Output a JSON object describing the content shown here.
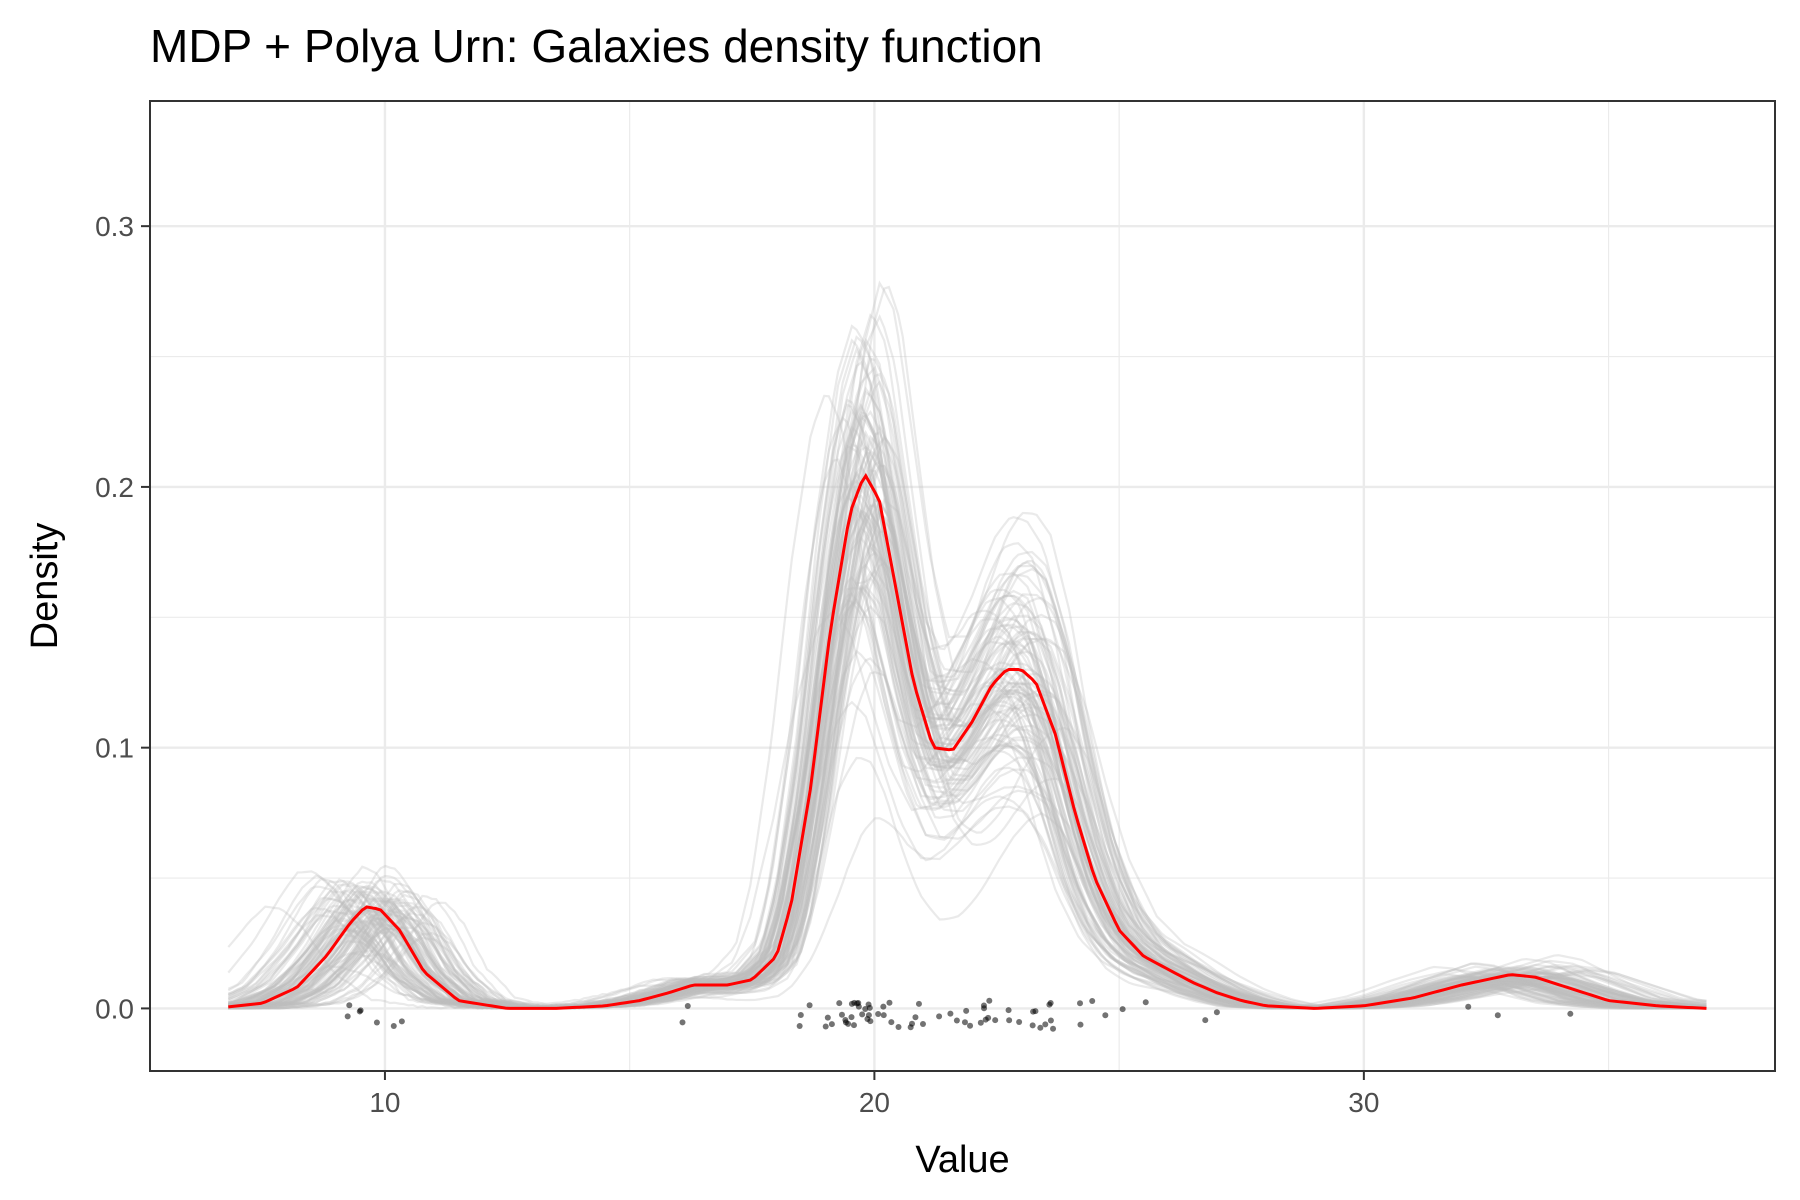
{
  "chart_data": {
    "type": "line",
    "title": "MDP + Polya Urn: Galaxies density function",
    "xlabel": "Value",
    "ylabel": "Density",
    "xlim": [
      5.2,
      38.4
    ],
    "ylim": [
      -0.024,
      0.348
    ],
    "x_ticks": [
      10,
      20,
      30
    ],
    "x_tick_labels": [
      "10",
      "20",
      "30"
    ],
    "y_ticks": [
      0.0,
      0.1,
      0.2,
      0.3
    ],
    "y_tick_labels": [
      "0.0",
      "0.1",
      "0.2",
      "0.3"
    ],
    "grid": true,
    "legend": "none",
    "colors": {
      "posterior_mean": "#ff0000",
      "posterior_draws": "#bdbdbd",
      "observations": "#000000",
      "panel_border": "#333333",
      "grid": "#ebebeb"
    },
    "posterior_mean": {
      "x": [
        5.2,
        6.5,
        7.5,
        8.2,
        8.8,
        9.3,
        9.6,
        9.9,
        10.3,
        10.8,
        11.5,
        12.5,
        13.5,
        14.5,
        15.2,
        15.8,
        16.3,
        17.0,
        17.5,
        18.0,
        18.3,
        18.7,
        19.1,
        19.5,
        19.8,
        20.1,
        20.4,
        20.8,
        21.2,
        21.6,
        22.0,
        22.4,
        22.7,
        23.0,
        23.3,
        23.7,
        24.1,
        24.5,
        25.0,
        25.5,
        26.0,
        26.5,
        27.0,
        27.5,
        28.0,
        29.0,
        30.0,
        31.0,
        32.0,
        32.5,
        33.0,
        33.5,
        34.0,
        34.5,
        35.0,
        36.0,
        37.0,
        38.4
      ],
      "y": [
        0.0,
        0.0,
        0.002,
        0.008,
        0.02,
        0.033,
        0.039,
        0.038,
        0.03,
        0.014,
        0.003,
        0.0,
        0.0,
        0.001,
        0.003,
        0.006,
        0.009,
        0.009,
        0.011,
        0.02,
        0.04,
        0.085,
        0.145,
        0.19,
        0.205,
        0.195,
        0.165,
        0.125,
        0.1,
        0.099,
        0.11,
        0.124,
        0.13,
        0.13,
        0.125,
        0.105,
        0.075,
        0.05,
        0.03,
        0.02,
        0.015,
        0.01,
        0.006,
        0.003,
        0.001,
        0.0,
        0.001,
        0.004,
        0.009,
        0.011,
        0.013,
        0.012,
        0.009,
        0.006,
        0.003,
        0.001,
        0.0,
        0.0
      ],
      "x_range": [
        6.8,
        37.0
      ]
    },
    "posterior_draws": {
      "count": 100
    },
    "observations": {
      "values": [
        9.17,
        9.35,
        9.48,
        9.56,
        9.78,
        10.23,
        10.41,
        16.08,
        16.17,
        18.42,
        18.55,
        18.6,
        18.93,
        19.05,
        19.07,
        19.33,
        19.34,
        19.35,
        19.44,
        19.47,
        19.53,
        19.54,
        19.54,
        19.55,
        19.63,
        19.67,
        19.67,
        19.79,
        19.84,
        19.85,
        19.86,
        19.86,
        19.91,
        19.97,
        19.99,
        20.17,
        20.18,
        20.22,
        20.42,
        20.5,
        20.79,
        20.82,
        20.85,
        20.88,
        21.02,
        21.38,
        21.49,
        21.76,
        21.81,
        21.92,
        21.96,
        22.18,
        22.19,
        22.21,
        22.24,
        22.25,
        22.37,
        22.5,
        22.75,
        22.75,
        22.89,
        23.21,
        23.24,
        23.26,
        23.48,
        23.54,
        23.54,
        23.66,
        23.69,
        23.71,
        24.13,
        24.29,
        24.37,
        24.72,
        24.99,
        25.63,
        26.69,
        26.96,
        32.07,
        32.79,
        34.28
      ]
    }
  }
}
